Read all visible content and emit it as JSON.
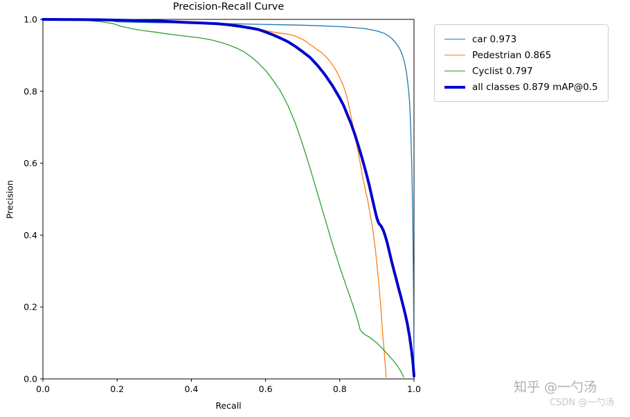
{
  "watermarks": {
    "primary": "知乎 @一勺汤",
    "secondary": "CSDN @一勺汤"
  },
  "chart_data": {
    "type": "line",
    "title": "Precision-Recall Curve",
    "xlabel": "Recall",
    "ylabel": "Precision",
    "xlim": [
      0.0,
      1.0
    ],
    "ylim": [
      0.0,
      1.0
    ],
    "xticks": {
      "values": [
        0.0,
        0.2,
        0.4,
        0.6,
        0.8,
        1.0
      ],
      "labels": [
        "0.0",
        "0.2",
        "0.4",
        "0.6",
        "0.8",
        "1.0"
      ]
    },
    "yticks": {
      "values": [
        0.0,
        0.2,
        0.4,
        0.6,
        0.8,
        1.0
      ],
      "labels": [
        "0.0",
        "0.2",
        "0.4",
        "0.6",
        "0.8",
        "1.0"
      ]
    },
    "grid": false,
    "legend_position": "upper right, outside plot",
    "series": [
      {
        "name": "car 0.973",
        "color": "#1f77b4",
        "width": 1.3,
        "points": [
          [
            0,
            1
          ],
          [
            0.1,
            0.999
          ],
          [
            0.18,
            0.997
          ],
          [
            0.2,
            0.993
          ],
          [
            0.3,
            0.991
          ],
          [
            0.4,
            0.99
          ],
          [
            0.5,
            0.988
          ],
          [
            0.6,
            0.986
          ],
          [
            0.7,
            0.984
          ],
          [
            0.75,
            0.982
          ],
          [
            0.8,
            0.98
          ],
          [
            0.84,
            0.977
          ],
          [
            0.87,
            0.974
          ],
          [
            0.9,
            0.968
          ],
          [
            0.92,
            0.961
          ],
          [
            0.93,
            0.955
          ],
          [
            0.94,
            0.947
          ],
          [
            0.95,
            0.936
          ],
          [
            0.96,
            0.921
          ],
          [
            0.965,
            0.911
          ],
          [
            0.97,
            0.897
          ],
          [
            0.975,
            0.878
          ],
          [
            0.98,
            0.85
          ],
          [
            0.985,
            0.807
          ],
          [
            0.988,
            0.77
          ],
          [
            0.99,
            0.73
          ],
          [
            0.992,
            0.672
          ],
          [
            0.994,
            0.59
          ],
          [
            0.996,
            0.48
          ],
          [
            0.998,
            0.33
          ],
          [
            0.999,
            0.19
          ],
          [
            1,
            0.02
          ]
        ]
      },
      {
        "name": "Pedestrian 0.865",
        "color": "#ff7f0e",
        "width": 1.3,
        "points": [
          [
            0,
            1
          ],
          [
            0.15,
            0.999
          ],
          [
            0.25,
            0.997
          ],
          [
            0.3,
            0.995
          ],
          [
            0.35,
            0.992
          ],
          [
            0.4,
            0.99
          ],
          [
            0.45,
            0.987
          ],
          [
            0.5,
            0.984
          ],
          [
            0.55,
            0.979
          ],
          [
            0.58,
            0.974
          ],
          [
            0.6,
            0.969
          ],
          [
            0.63,
            0.963
          ],
          [
            0.66,
            0.959
          ],
          [
            0.68,
            0.954
          ],
          [
            0.69,
            0.949
          ],
          [
            0.7,
            0.944
          ],
          [
            0.71,
            0.938
          ],
          [
            0.72,
            0.93
          ],
          [
            0.73,
            0.923
          ],
          [
            0.74,
            0.915
          ],
          [
            0.75,
            0.908
          ],
          [
            0.76,
            0.899
          ],
          [
            0.77,
            0.888
          ],
          [
            0.78,
            0.874
          ],
          [
            0.79,
            0.858
          ],
          [
            0.8,
            0.838
          ],
          [
            0.81,
            0.814
          ],
          [
            0.82,
            0.782
          ],
          [
            0.83,
            0.732
          ],
          [
            0.84,
            0.681
          ],
          [
            0.85,
            0.63
          ],
          [
            0.86,
            0.571
          ],
          [
            0.87,
            0.52
          ],
          [
            0.875,
            0.499
          ],
          [
            0.88,
            0.468
          ],
          [
            0.885,
            0.44
          ],
          [
            0.89,
            0.408
          ],
          [
            0.895,
            0.368
          ],
          [
            0.9,
            0.32
          ],
          [
            0.905,
            0.266
          ],
          [
            0.91,
            0.208
          ],
          [
            0.913,
            0.162
          ],
          [
            0.916,
            0.12
          ],
          [
            0.919,
            0.085
          ],
          [
            0.922,
            0.045
          ],
          [
            0.925,
            0.005
          ]
        ]
      },
      {
        "name": "Cyclist 0.797",
        "color": "#2ca02c",
        "width": 1.3,
        "points": [
          [
            0,
            1
          ],
          [
            0.08,
            0.999
          ],
          [
            0.12,
            0.997
          ],
          [
            0.16,
            0.993
          ],
          [
            0.19,
            0.988
          ],
          [
            0.21,
            0.981
          ],
          [
            0.24,
            0.974
          ],
          [
            0.27,
            0.969
          ],
          [
            0.3,
            0.965
          ],
          [
            0.34,
            0.959
          ],
          [
            0.38,
            0.954
          ],
          [
            0.42,
            0.949
          ],
          [
            0.45,
            0.944
          ],
          [
            0.48,
            0.936
          ],
          [
            0.5,
            0.929
          ],
          [
            0.52,
            0.921
          ],
          [
            0.54,
            0.911
          ],
          [
            0.56,
            0.897
          ],
          [
            0.58,
            0.879
          ],
          [
            0.6,
            0.858
          ],
          [
            0.62,
            0.831
          ],
          [
            0.64,
            0.801
          ],
          [
            0.66,
            0.761
          ],
          [
            0.68,
            0.712
          ],
          [
            0.7,
            0.652
          ],
          [
            0.72,
            0.586
          ],
          [
            0.74,
            0.516
          ],
          [
            0.76,
            0.446
          ],
          [
            0.78,
            0.376
          ],
          [
            0.8,
            0.311
          ],
          [
            0.82,
            0.251
          ],
          [
            0.84,
            0.191
          ],
          [
            0.85,
            0.157
          ],
          [
            0.855,
            0.136
          ],
          [
            0.865,
            0.125
          ],
          [
            0.88,
            0.116
          ],
          [
            0.9,
            0.1
          ],
          [
            0.92,
            0.079
          ],
          [
            0.94,
            0.056
          ],
          [
            0.955,
            0.037
          ],
          [
            0.965,
            0.02
          ],
          [
            0.972,
            0.005
          ]
        ]
      },
      {
        "name": "all classes 0.879 mAP@0.5",
        "color": "#0000cc",
        "width": 4,
        "points": [
          [
            0,
            1
          ],
          [
            0.15,
            0.999
          ],
          [
            0.25,
            0.997
          ],
          [
            0.32,
            0.995
          ],
          [
            0.38,
            0.992
          ],
          [
            0.43,
            0.99
          ],
          [
            0.47,
            0.988
          ],
          [
            0.5,
            0.985
          ],
          [
            0.53,
            0.981
          ],
          [
            0.56,
            0.976
          ],
          [
            0.58,
            0.972
          ],
          [
            0.6,
            0.965
          ],
          [
            0.62,
            0.957
          ],
          [
            0.64,
            0.948
          ],
          [
            0.66,
            0.938
          ],
          [
            0.68,
            0.925
          ],
          [
            0.7,
            0.91
          ],
          [
            0.72,
            0.894
          ],
          [
            0.74,
            0.872
          ],
          [
            0.76,
            0.846
          ],
          [
            0.78,
            0.816
          ],
          [
            0.8,
            0.781
          ],
          [
            0.81,
            0.761
          ],
          [
            0.82,
            0.736
          ],
          [
            0.83,
            0.711
          ],
          [
            0.84,
            0.682
          ],
          [
            0.85,
            0.649
          ],
          [
            0.86,
            0.614
          ],
          [
            0.87,
            0.577
          ],
          [
            0.88,
            0.536
          ],
          [
            0.89,
            0.491
          ],
          [
            0.895,
            0.468
          ],
          [
            0.9,
            0.447
          ],
          [
            0.905,
            0.433
          ],
          [
            0.912,
            0.424
          ],
          [
            0.918,
            0.412
          ],
          [
            0.922,
            0.399
          ],
          [
            0.928,
            0.378
          ],
          [
            0.934,
            0.352
          ],
          [
            0.94,
            0.326
          ],
          [
            0.946,
            0.301
          ],
          [
            0.952,
            0.278
          ],
          [
            0.958,
            0.254
          ],
          [
            0.964,
            0.231
          ],
          [
            0.97,
            0.207
          ],
          [
            0.976,
            0.182
          ],
          [
            0.982,
            0.153
          ],
          [
            0.988,
            0.118
          ],
          [
            0.993,
            0.082
          ],
          [
            0.997,
            0.047
          ],
          [
            1,
            0.008
          ]
        ]
      }
    ]
  }
}
